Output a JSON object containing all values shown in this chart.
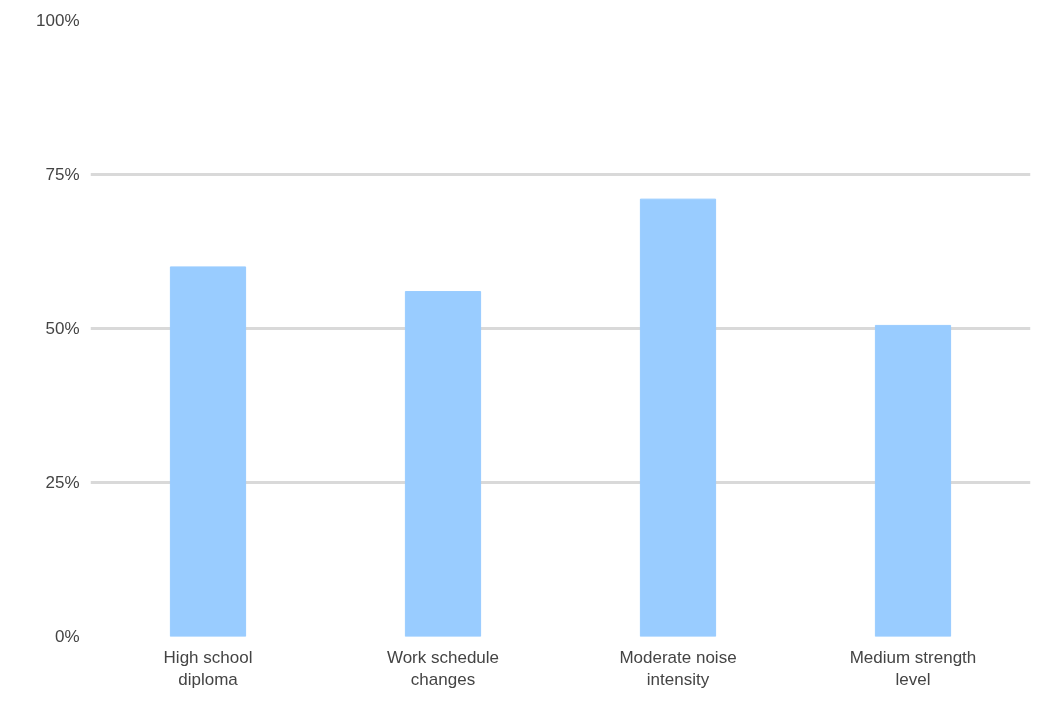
{
  "chart_data": {
    "type": "bar",
    "categories": [
      "High school diploma",
      "Work schedule changes",
      "Moderate noise intensity",
      "Medium strength level"
    ],
    "values": [
      60,
      56,
      71,
      50.5
    ],
    "color": "#99ccff",
    "ylim": [
      0,
      100
    ],
    "yticks": [
      {
        "value": 0,
        "label": "0%"
      },
      {
        "value": 25,
        "label": "25%"
      },
      {
        "value": 50,
        "label": "50%"
      },
      {
        "value": 75,
        "label": "75%"
      },
      {
        "value": 100,
        "label": "100%"
      }
    ],
    "grid": "y"
  }
}
